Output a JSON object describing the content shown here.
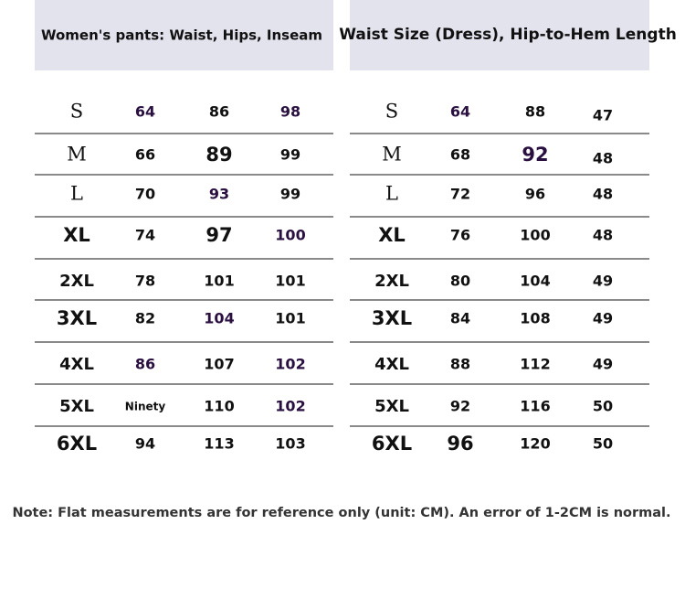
{
  "tables": [
    {
      "title": "Women's pants: Waist, Hips, Inseam",
      "rows": [
        [
          "S",
          64,
          86,
          98
        ],
        [
          "M",
          66,
          89,
          99
        ],
        [
          "L",
          70,
          93,
          99
        ],
        [
          "XL",
          74,
          97,
          100
        ],
        [
          "2XL",
          78,
          101,
          101
        ],
        [
          "3XL",
          82,
          104,
          101
        ],
        [
          "4XL",
          86,
          107,
          102
        ],
        [
          "5XL",
          "Ninety",
          110,
          102
        ],
        [
          "6XL",
          94,
          113,
          103
        ]
      ]
    },
    {
      "title": "Waist Size (Dress), Hip-to-Hem Length",
      "rows": [
        [
          "S",
          64,
          88,
          47
        ],
        [
          "M",
          68,
          92,
          48
        ],
        [
          "L",
          72,
          96,
          48
        ],
        [
          "XL",
          76,
          100,
          48
        ],
        [
          "2XL",
          80,
          104,
          49
        ],
        [
          "3XL",
          84,
          108,
          49
        ],
        [
          "4XL",
          88,
          112,
          49
        ],
        [
          "5XL",
          92,
          116,
          50
        ],
        [
          "6XL",
          96,
          120,
          50
        ]
      ]
    }
  ],
  "note": "Note: Flat measurements are for reference only (unit: CM). An error of 1-2CM is normal."
}
